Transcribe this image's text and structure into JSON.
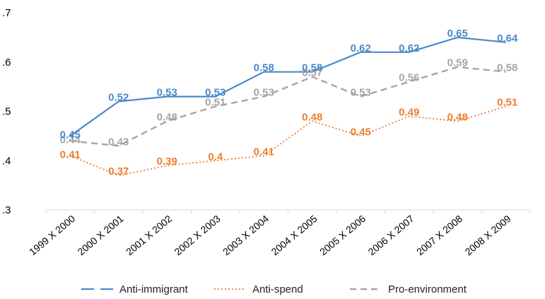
{
  "chart_data": {
    "type": "line",
    "title": "",
    "xlabel": "",
    "ylabel": "",
    "categories": [
      "1999 X 2000",
      "2000 X 2001",
      "2001 X 2002",
      "2002 X 2003",
      "2003 X 2004",
      "2004 X 2005",
      "2005 X 2006",
      "2006 X 2007",
      "2007 X 2008",
      "2008 X 2009"
    ],
    "ylim": [
      0.3,
      0.7
    ],
    "yticks": [
      ".3",
      ".4",
      ".5",
      ".6",
      ".7"
    ],
    "ytick_values": [
      0.3,
      0.4,
      0.5,
      0.6,
      0.7
    ],
    "grid": false,
    "legend_position": "bottom",
    "series": [
      {
        "name": "Anti-immigrant",
        "color": "#4a8ac9",
        "dash": "solid",
        "values": [
          0.45,
          0.52,
          0.53,
          0.53,
          0.58,
          0.58,
          0.62,
          0.62,
          0.65,
          0.64
        ],
        "labels": [
          "0.45",
          "0.52",
          "0.53",
          "0.53",
          "0.58",
          "0.58",
          "0.62",
          "0.62",
          "0.65",
          "0.64"
        ]
      },
      {
        "name": "Anti-spend",
        "color": "#ed7d31",
        "dash": "dotted",
        "values": [
          0.41,
          0.37,
          0.39,
          0.4,
          0.41,
          0.48,
          0.45,
          0.49,
          0.48,
          0.51
        ],
        "labels": [
          "0.41",
          "0.37",
          "0.39",
          "0.4",
          "0.41",
          "0.48",
          "0.45",
          "0.49",
          "0.48",
          "0.51"
        ]
      },
      {
        "name": "Pro-environment",
        "color": "#a5a5a5",
        "dash": "dashed",
        "values": [
          0.44,
          0.43,
          0.48,
          0.51,
          0.53,
          0.57,
          0.53,
          0.56,
          0.59,
          0.58
        ],
        "labels": [
          "0.44",
          "0.43",
          "0.48",
          "0.51",
          "0.53",
          "0.57",
          "0.53",
          "0.56",
          "0.59",
          "0.58"
        ]
      }
    ]
  }
}
